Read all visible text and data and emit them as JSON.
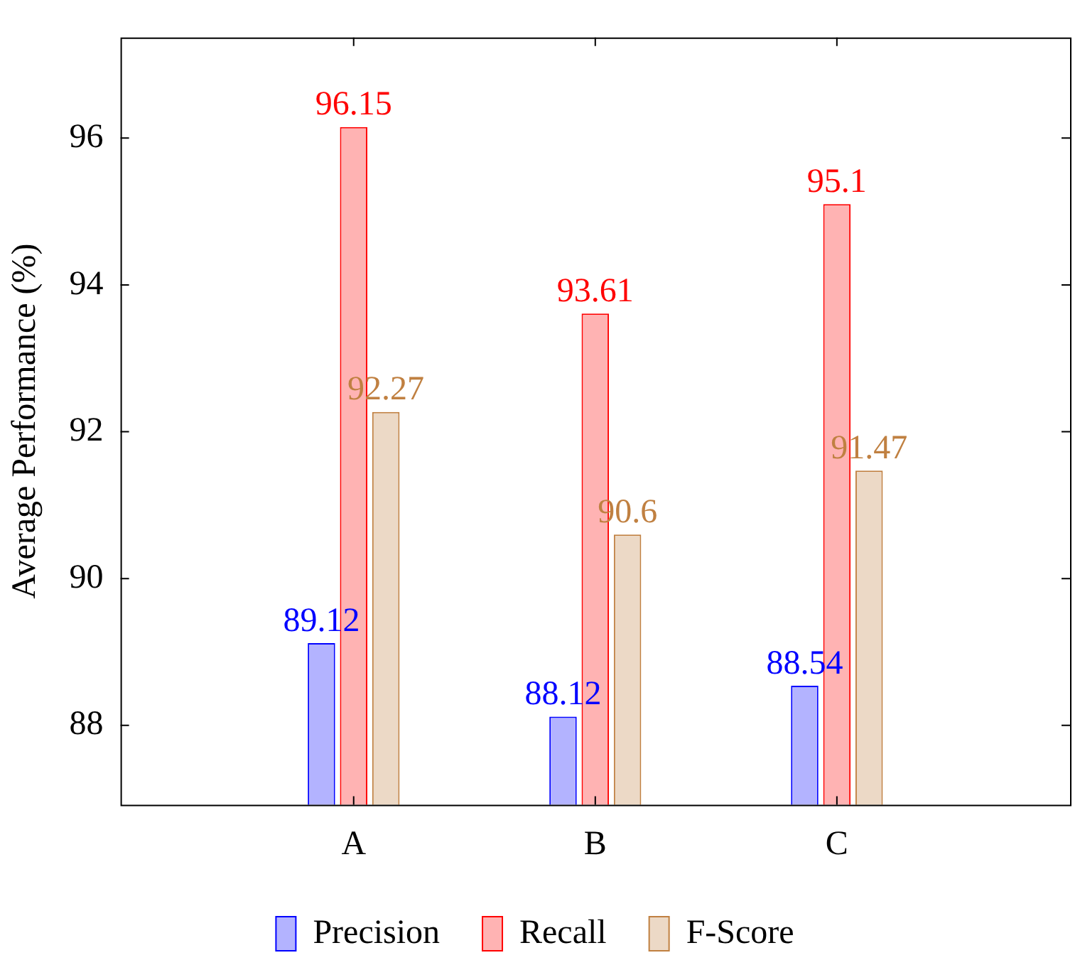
{
  "chart_data": {
    "type": "bar",
    "ylabel": "Average Performance (%)",
    "categories": [
      "A",
      "B",
      "C"
    ],
    "series": [
      {
        "name": "Precision",
        "color": "#b3b3ff",
        "values": [
          89.12,
          88.12,
          88.54
        ]
      },
      {
        "name": "Recall",
        "color": "#ffb3b3",
        "values": [
          96.15,
          93.61,
          95.1
        ]
      },
      {
        "name": "F-Score",
        "color": "#ecd9c6",
        "values": [
          92.27,
          90.6,
          91.47
        ]
      }
    ],
    "ylim": [
      86.92,
      97.37
    ],
    "yticks": [
      88,
      90,
      92,
      94,
      96
    ],
    "grid": false,
    "legend": "bottom",
    "data_labels": true
  }
}
